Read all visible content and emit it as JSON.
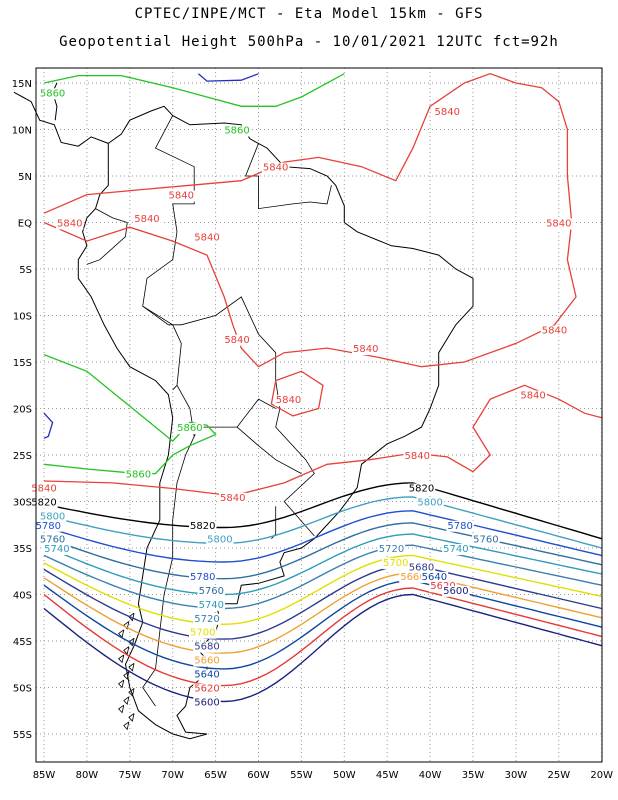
{
  "header": {
    "line1": "CPTEC/INPE/MCT -  Eta Model 15km - GFS",
    "line2": "Geopotential Height 500hPa - 10/01/2021 12UTC fct=92h"
  },
  "axes": {
    "lat_labels": [
      "15N",
      "10N",
      "5N",
      "EQ",
      "5S",
      "10S",
      "15S",
      "20S",
      "25S",
      "30S",
      "35S",
      "40S",
      "45S",
      "50S",
      "55S"
    ],
    "lon_labels": [
      "85W",
      "80W",
      "75W",
      "70W",
      "65W",
      "60W",
      "55W",
      "50W",
      "45W",
      "40W",
      "35W",
      "30W",
      "25W",
      "20W"
    ]
  },
  "colors": {
    "c5600": "#1a237e",
    "c5620": "#e53935",
    "c5640": "#0d47a1",
    "c5660": "#f0a030",
    "c5680": "#2e3b8c",
    "c5700": "#e0e000",
    "c5720": "#3b7fb0",
    "c5740": "#2e9bbd",
    "c5760": "#2e6fa0",
    "c5780": "#1f4fd0",
    "c5800": "#3fa0c0",
    "c5820": "#000000",
    "c5840": "#e8403a",
    "c5860": "#22c422",
    "c5880": "#2030c0",
    "grid": "#9a9a9a",
    "coast": "#000000"
  },
  "contour_labels": [
    {
      "text": "5840",
      "color": "c5840",
      "lon": -38,
      "lat": 12
    },
    {
      "text": "5840",
      "color": "c5840",
      "lon": -69,
      "lat": 3
    },
    {
      "text": "5840",
      "color": "c5840",
      "lon": -58,
      "lat": 6
    },
    {
      "text": "5840",
      "color": "c5840",
      "lon": -82,
      "lat": 0
    },
    {
      "text": "5840",
      "color": "c5840",
      "lon": -73,
      "lat": 0.5
    },
    {
      "text": "5840",
      "color": "c5840",
      "lon": -66,
      "lat": -1.5
    },
    {
      "text": "5840",
      "color": "c5840",
      "lon": -25,
      "lat": 0
    },
    {
      "text": "5840",
      "color": "c5840",
      "lon": -25.5,
      "lat": -11.5
    },
    {
      "text": "5840",
      "color": "c5840",
      "lon": -62.5,
      "lat": -12.5
    },
    {
      "text": "5840",
      "color": "c5840",
      "lon": -47.5,
      "lat": -13.5
    },
    {
      "text": "5840",
      "color": "c5840",
      "lon": -56.5,
      "lat": -19
    },
    {
      "text": "5840",
      "color": "c5840",
      "lon": -28,
      "lat": -18.5
    },
    {
      "text": "5840",
      "color": "c5840",
      "lon": -41.5,
      "lat": -25
    },
    {
      "text": "5840",
      "color": "c5840",
      "lon": -85,
      "lat": -28.5
    },
    {
      "text": "5840",
      "color": "c5840",
      "lon": -63,
      "lat": -29.5
    },
    {
      "text": "5820",
      "color": "c5820",
      "lon": -85,
      "lat": -30
    },
    {
      "text": "5820",
      "color": "c5820",
      "lon": -41,
      "lat": -28.5
    },
    {
      "text": "5820",
      "color": "c5820",
      "lon": -66.5,
      "lat": -32.5
    },
    {
      "text": "5800",
      "color": "c5800",
      "lon": -84,
      "lat": -31.5
    },
    {
      "text": "5800",
      "color": "c5800",
      "lon": -40,
      "lat": -30
    },
    {
      "text": "5800",
      "color": "c5800",
      "lon": -64.5,
      "lat": -34
    },
    {
      "text": "5780",
      "color": "c5780",
      "lon": -84.5,
      "lat": -32.5
    },
    {
      "text": "5780",
      "color": "c5780",
      "lon": -36.5,
      "lat": -32.5
    },
    {
      "text": "5780",
      "color": "c5780",
      "lon": -66.5,
      "lat": -38
    },
    {
      "text": "5760",
      "color": "c5760",
      "lon": -84,
      "lat": -34
    },
    {
      "text": "5760",
      "color": "c5760",
      "lon": -33.5,
      "lat": -34
    },
    {
      "text": "5760",
      "color": "c5760",
      "lon": -65.5,
      "lat": -39.5
    },
    {
      "text": "5740",
      "color": "c5740",
      "lon": -83.5,
      "lat": -35
    },
    {
      "text": "5740",
      "color": "c5740",
      "lon": -37,
      "lat": -35
    },
    {
      "text": "5740",
      "color": "c5740",
      "lon": -65.5,
      "lat": -41
    },
    {
      "text": "5720",
      "color": "c5720",
      "lon": -44.5,
      "lat": -35
    },
    {
      "text": "5720",
      "color": "c5720",
      "lon": -66,
      "lat": -42.5
    },
    {
      "text": "5700",
      "color": "c5700",
      "lon": -44,
      "lat": -36.5
    },
    {
      "text": "5700",
      "color": "c5700",
      "lon": -66.5,
      "lat": -44
    },
    {
      "text": "5680",
      "color": "c5680",
      "lon": -41,
      "lat": -37
    },
    {
      "text": "5680",
      "color": "c5680",
      "lon": -66,
      "lat": -45.5
    },
    {
      "text": "5660",
      "color": "c5660",
      "lon": -42,
      "lat": -38
    },
    {
      "text": "5660",
      "color": "c5660",
      "lon": -66,
      "lat": -47
    },
    {
      "text": "5640",
      "color": "c5640",
      "lon": -39.5,
      "lat": -38
    },
    {
      "text": "5640",
      "color": "c5640",
      "lon": -66,
      "lat": -48.5
    },
    {
      "text": "5620",
      "color": "c5620",
      "lon": -38.5,
      "lat": -39
    },
    {
      "text": "5620",
      "color": "c5620",
      "lon": -66,
      "lat": -50
    },
    {
      "text": "5600",
      "color": "c5600",
      "lon": -37,
      "lat": -39.5
    },
    {
      "text": "5600",
      "color": "c5600",
      "lon": -66,
      "lat": -51.5
    },
    {
      "text": "5860",
      "color": "c5860",
      "lon": -84,
      "lat": 14
    },
    {
      "text": "5860",
      "color": "c5860",
      "lon": -62.5,
      "lat": 10
    },
    {
      "text": "5860",
      "color": "c5860",
      "lon": -68,
      "lat": -22
    },
    {
      "text": "5860",
      "color": "c5860",
      "lon": -74,
      "lat": -27
    }
  ]
}
